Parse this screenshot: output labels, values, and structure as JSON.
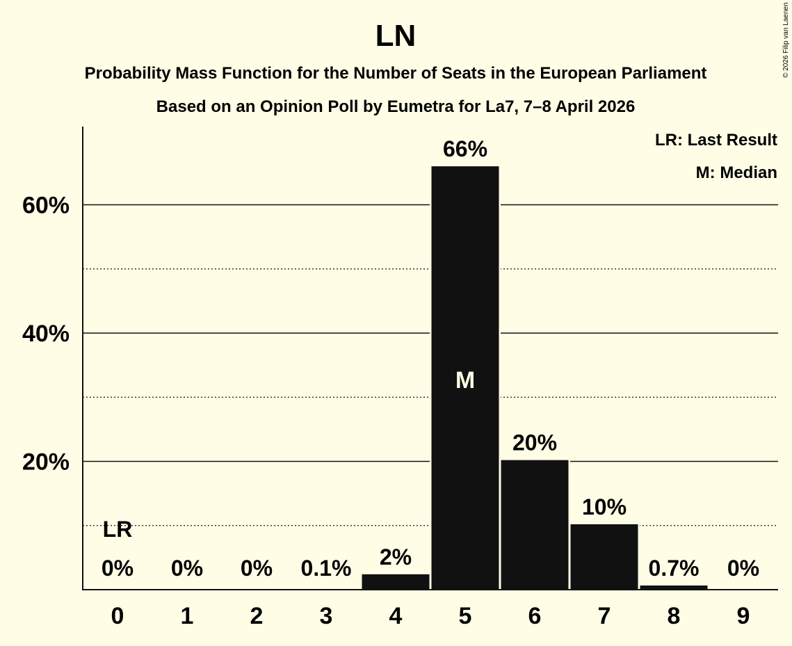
{
  "chart_data": {
    "type": "bar",
    "title": "LN",
    "subtitle": "Probability Mass Function for the Number of Seats in the European Parliament",
    "subtitle2": "Based on an Opinion Poll by Eumetra for La7, 7–8 April 2026",
    "copyright": "© 2026 Filip van Laenen",
    "categories": [
      "0",
      "1",
      "2",
      "3",
      "4",
      "5",
      "6",
      "7",
      "8",
      "9"
    ],
    "values": [
      0,
      0,
      0,
      0.1,
      2.4,
      66,
      20.2,
      10.2,
      0.65,
      0
    ],
    "labels": [
      "0%",
      "0%",
      "0%",
      "0.1%",
      "2%",
      "66%",
      "20%",
      "10%",
      "0.7%",
      "0%"
    ],
    "ylim": [
      0,
      72
    ],
    "yticks": [
      {
        "value": 20,
        "label": "20%"
      },
      {
        "value": 40,
        "label": "40%"
      },
      {
        "value": 60,
        "label": "60%"
      }
    ],
    "minor_gridlines": [
      10,
      30,
      50
    ],
    "last_result_index": 0,
    "last_result_label": "LR",
    "median_index": 5,
    "median_label": "M",
    "legend": [
      "LR: Last Result",
      "M: Median"
    ],
    "legend_position": "top-right",
    "bar_color": "#111111",
    "background": "#fffde6"
  }
}
